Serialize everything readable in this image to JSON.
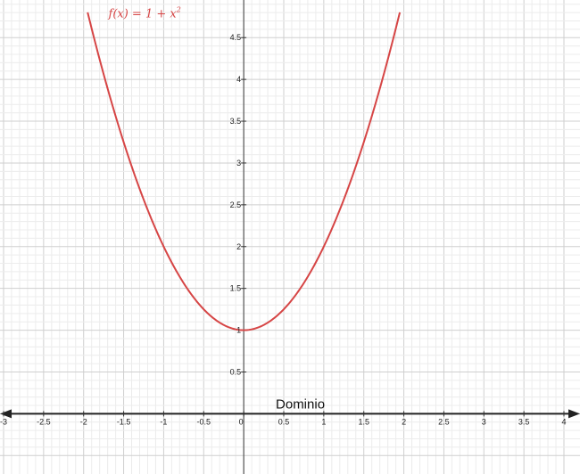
{
  "chart_data": {
    "type": "line",
    "function_label": "f(x) = 1 + x²",
    "function_label_parts": {
      "main": "f(x)  =  1 + x",
      "exponent": "2"
    },
    "series": [
      {
        "name": "f(x) = 1 + x²",
        "color": "#d64545",
        "x": [
          -1.95,
          -1.75,
          -1.5,
          -1.25,
          -1.0,
          -0.75,
          -0.5,
          -0.25,
          0.0,
          0.25,
          0.5,
          0.75,
          1.0,
          1.25,
          1.5,
          1.75,
          1.95
        ],
        "y": [
          4.8025,
          4.0625,
          3.25,
          2.5625,
          2.0,
          1.5625,
          1.25,
          1.0625,
          1.0,
          1.0625,
          1.25,
          1.5625,
          2.0,
          2.5625,
          3.25,
          4.0625,
          4.8025
        ]
      }
    ],
    "xlim": [
      -3,
      4
    ],
    "ylim": [
      -0.55,
      4.95
    ],
    "x_ticks": [
      "-3",
      "-2.5",
      "-2",
      "-1.5",
      "-1",
      "-0.5",
      "0",
      "0.5",
      "1",
      "1.5",
      "2",
      "2.5",
      "3",
      "3.5",
      "4"
    ],
    "y_ticks": [
      "0.5",
      "1",
      "1.5",
      "2",
      "2.5",
      "3",
      "3.5",
      "4",
      "4.5"
    ],
    "grid": true,
    "domain_label": "Dominio",
    "domain_axis_color": "#222222"
  }
}
